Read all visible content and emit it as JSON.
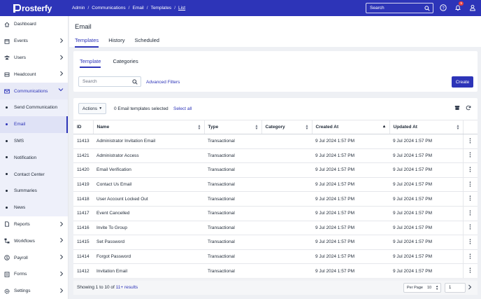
{
  "app": {
    "logo_text": "rosterfy"
  },
  "breadcrumb": [
    "Admin",
    "Communications",
    "Email",
    "Templates",
    "List"
  ],
  "topbar": {
    "search_placeholder": "Search",
    "notification_count": "5"
  },
  "sidebar": {
    "items": [
      {
        "label": "Dashboard",
        "icon": "home-icon"
      },
      {
        "label": "Events",
        "icon": "calendar-icon",
        "chevron": true
      },
      {
        "label": "Users",
        "icon": "users-icon",
        "chevron": true
      },
      {
        "label": "Headcount",
        "icon": "clipboard-icon",
        "chevron": true
      },
      {
        "label": "Communications",
        "icon": "envelope-icon",
        "open": true
      }
    ],
    "sub_items": [
      "Send Communication",
      "Email",
      "SMS",
      "Notification",
      "Contact Center",
      "Summaries",
      "News"
    ],
    "active_sub": "Email",
    "bottom_items": [
      {
        "label": "Reports",
        "icon": "document-icon"
      },
      {
        "label": "Workflows",
        "icon": "workflow-icon"
      },
      {
        "label": "Payroll",
        "icon": "dollar-icon"
      },
      {
        "label": "Forms",
        "icon": "form-icon"
      },
      {
        "label": "Settings",
        "icon": "gear-icon"
      }
    ]
  },
  "page": {
    "title": "Email",
    "tabs": [
      "Templates",
      "History",
      "Scheduled"
    ],
    "active_tab": "Templates"
  },
  "filters": {
    "subtabs": [
      "Template",
      "Categories"
    ],
    "search_placeholder": "Search",
    "advanced_filters": "Advanced Filters",
    "create_label": "Create"
  },
  "toolbar": {
    "actions_label": "Actions",
    "selected_text": "0 Email templates selected",
    "select_all": "Select all"
  },
  "table": {
    "columns": [
      "ID",
      "Name",
      "Type",
      "Category",
      "Created At",
      "Updated At"
    ],
    "rows": [
      [
        "11413",
        "Administrator Invitation Email",
        "Transactional",
        "",
        "9 Jul 2024 1:57 PM",
        "9 Jul 2024 1:57 PM"
      ],
      [
        "11421",
        "Administrator Access",
        "Transactional",
        "",
        "9 Jul 2024 1:57 PM",
        "9 Jul 2024 1:57 PM"
      ],
      [
        "11420",
        "Email Verification",
        "Transactional",
        "",
        "9 Jul 2024 1:57 PM",
        "9 Jul 2024 1:57 PM"
      ],
      [
        "11419",
        "Contact Us Email",
        "Transactional",
        "",
        "9 Jul 2024 1:57 PM",
        "9 Jul 2024 1:57 PM"
      ],
      [
        "11418",
        "User Account Locked Out",
        "Transactional",
        "",
        "9 Jul 2024 1:57 PM",
        "9 Jul 2024 1:57 PM"
      ],
      [
        "11417",
        "Event Cancelled",
        "Transactional",
        "",
        "9 Jul 2024 1:57 PM",
        "9 Jul 2024 1:57 PM"
      ],
      [
        "11416",
        "Invite To Group",
        "Transactional",
        "",
        "9 Jul 2024 1:57 PM",
        "9 Jul 2024 1:57 PM"
      ],
      [
        "11415",
        "Set Password",
        "Transactional",
        "",
        "9 Jul 2024 1:57 PM",
        "9 Jul 2024 1:57 PM"
      ],
      [
        "11414",
        "Forgot Password",
        "Transactional",
        "",
        "9 Jul 2024 1:57 PM",
        "9 Jul 2024 1:57 PM"
      ],
      [
        "11412",
        "Invitation Email",
        "Transactional",
        "",
        "9 Jul 2024 1:57 PM",
        "9 Jul 2024 1:57 PM"
      ]
    ]
  },
  "footer": {
    "showing_prefix": "Showing 1 to 10 of ",
    "results_link": "11+ results",
    "per_page_label": "Per Page",
    "per_page_value": "10",
    "page_value": "1"
  },
  "colors": {
    "brand": "#2d34b8"
  }
}
